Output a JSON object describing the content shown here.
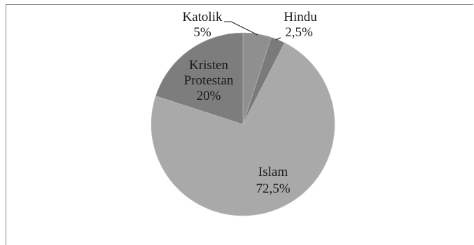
{
  "chart_data": {
    "type": "pie",
    "slices": [
      {
        "label": "Katolik",
        "value": 5,
        "value_text": "5%",
        "color": "#8f8f8f"
      },
      {
        "label": "Hindu",
        "value": 2.5,
        "value_text": "2,5%",
        "color": "#7a7a7a"
      },
      {
        "label": "Islam",
        "value": 72.5,
        "value_text": "72,5%",
        "color": "#a9a9a9"
      },
      {
        "label": "Kristen Protestan",
        "label_lines": [
          "Kristen",
          "Protestan"
        ],
        "value": 20,
        "value_text": "20%",
        "color": "#7d7d7d"
      }
    ]
  }
}
